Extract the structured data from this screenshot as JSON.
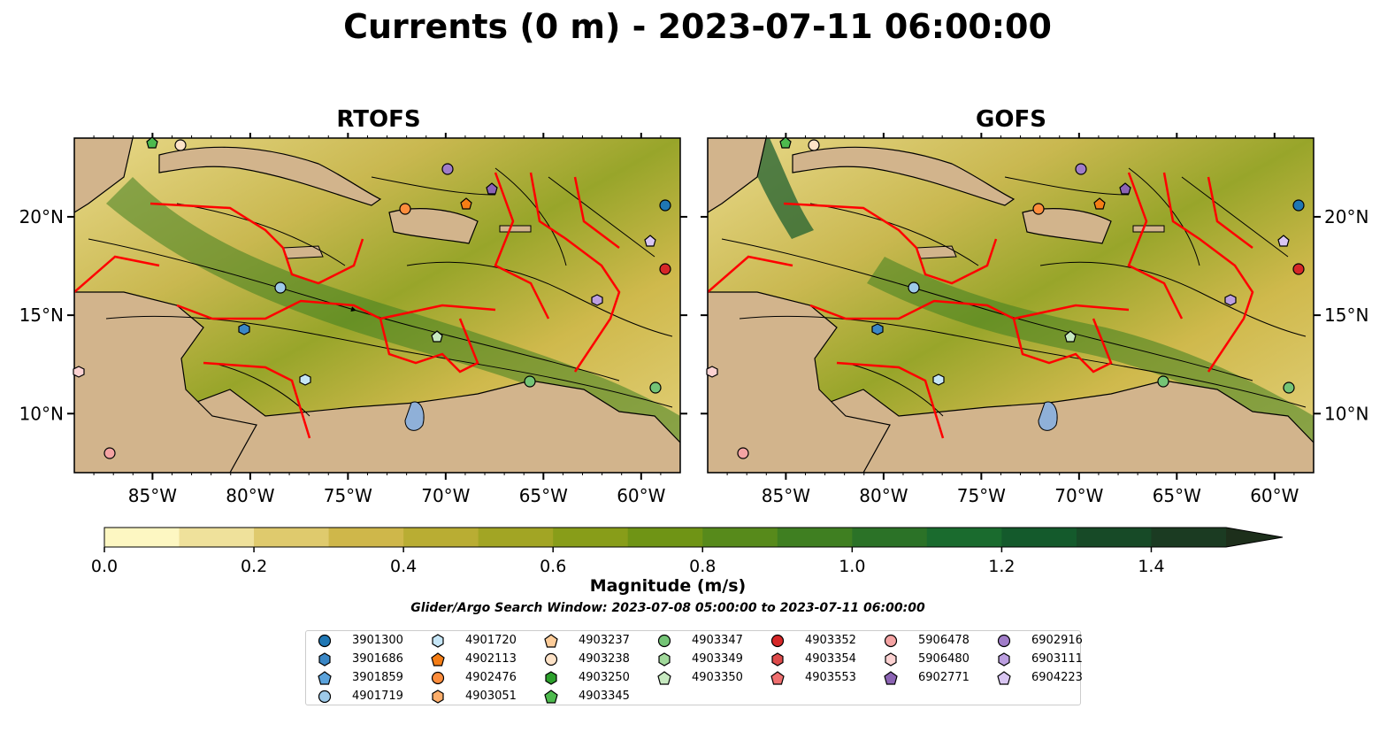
{
  "figure": {
    "title": "Currents (0 m) - 2023-07-11 06:00:00"
  },
  "panels": [
    {
      "title": "RTOFS"
    },
    {
      "title": "GOFS"
    }
  ],
  "map": {
    "lon_ticks": [
      "85°W",
      "80°W",
      "75°W",
      "70°W",
      "65°W",
      "60°W"
    ],
    "lat_ticks": [
      "20°N",
      "15°N",
      "10°N"
    ],
    "lon_range": [
      -89,
      -58
    ],
    "lat_range": [
      7,
      24
    ],
    "colors": {
      "land": "#d2b48c",
      "lake": "#8fb0d8",
      "coastline": "#000000",
      "polygon": "#ff0000",
      "streamline": "#000000"
    }
  },
  "colorbar": {
    "label": "Magnitude (m/s)",
    "ticks": [
      "0.0",
      "0.2",
      "0.4",
      "0.6",
      "0.8",
      "1.0",
      "1.2",
      "1.4"
    ],
    "range": [
      0,
      1.5
    ],
    "extend": "max",
    "colors": [
      "#fdf7c2",
      "#efe19b",
      "#dfca6d",
      "#cfb74a",
      "#b9ad33",
      "#a2a524",
      "#889d19",
      "#6f9415",
      "#578a1b",
      "#3f7f21",
      "#2b7227",
      "#1a6b2e",
      "#145a2c",
      "#174a27",
      "#1b3b22",
      "#1d2f1b"
    ]
  },
  "search_window": "Glider/Argo Search Window: 2023-07-08 05:00:00 to 2023-07-11 06:00:00",
  "legend": {
    "columns": [
      [
        {
          "id": "3901300",
          "marker": "circle",
          "color": "#1f77b4"
        },
        {
          "id": "3901686",
          "marker": "hexagon",
          "color": "#3a87c6"
        },
        {
          "id": "3901859",
          "marker": "pentagon",
          "color": "#5ba3dc"
        },
        {
          "id": "4901719",
          "marker": "circle",
          "color": "#9ecae9"
        }
      ],
      [
        {
          "id": "4901720",
          "marker": "hexagon",
          "color": "#c6e6f7"
        },
        {
          "id": "4902113",
          "marker": "pentagon",
          "color": "#f57d15"
        },
        {
          "id": "4902476",
          "marker": "circle",
          "color": "#fd8d3c"
        },
        {
          "id": "4903051",
          "marker": "hexagon",
          "color": "#fdae6b"
        }
      ],
      [
        {
          "id": "4903237",
          "marker": "pentagon",
          "color": "#fdcc99"
        },
        {
          "id": "4903238",
          "marker": "circle",
          "color": "#fee3c8"
        },
        {
          "id": "4903250",
          "marker": "hexagon",
          "color": "#2ca02c"
        },
        {
          "id": "4903345",
          "marker": "pentagon",
          "color": "#4eba4e"
        }
      ],
      [
        {
          "id": "4903347",
          "marker": "circle",
          "color": "#74c476"
        },
        {
          "id": "4903349",
          "marker": "hexagon",
          "color": "#a1d99b"
        },
        {
          "id": "4903350",
          "marker": "pentagon",
          "color": "#c7e9c0"
        }
      ],
      [
        {
          "id": "4903352",
          "marker": "circle",
          "color": "#d62728"
        },
        {
          "id": "4903354",
          "marker": "hexagon",
          "color": "#de4b4b"
        },
        {
          "id": "4903553",
          "marker": "pentagon",
          "color": "#ef6f6f"
        }
      ],
      [
        {
          "id": "5906478",
          "marker": "circle",
          "color": "#f4a3a3"
        },
        {
          "id": "5906480",
          "marker": "hexagon",
          "color": "#fcd2d2"
        },
        {
          "id": "6902771",
          "marker": "pentagon",
          "color": "#8c64b4"
        }
      ],
      [
        {
          "id": "6902916",
          "marker": "circle",
          "color": "#a07cc8"
        },
        {
          "id": "6903111",
          "marker": "hexagon",
          "color": "#bc9fe0"
        },
        {
          "id": "6904223",
          "marker": "pentagon",
          "color": "#d9c6f2"
        }
      ]
    ]
  }
}
